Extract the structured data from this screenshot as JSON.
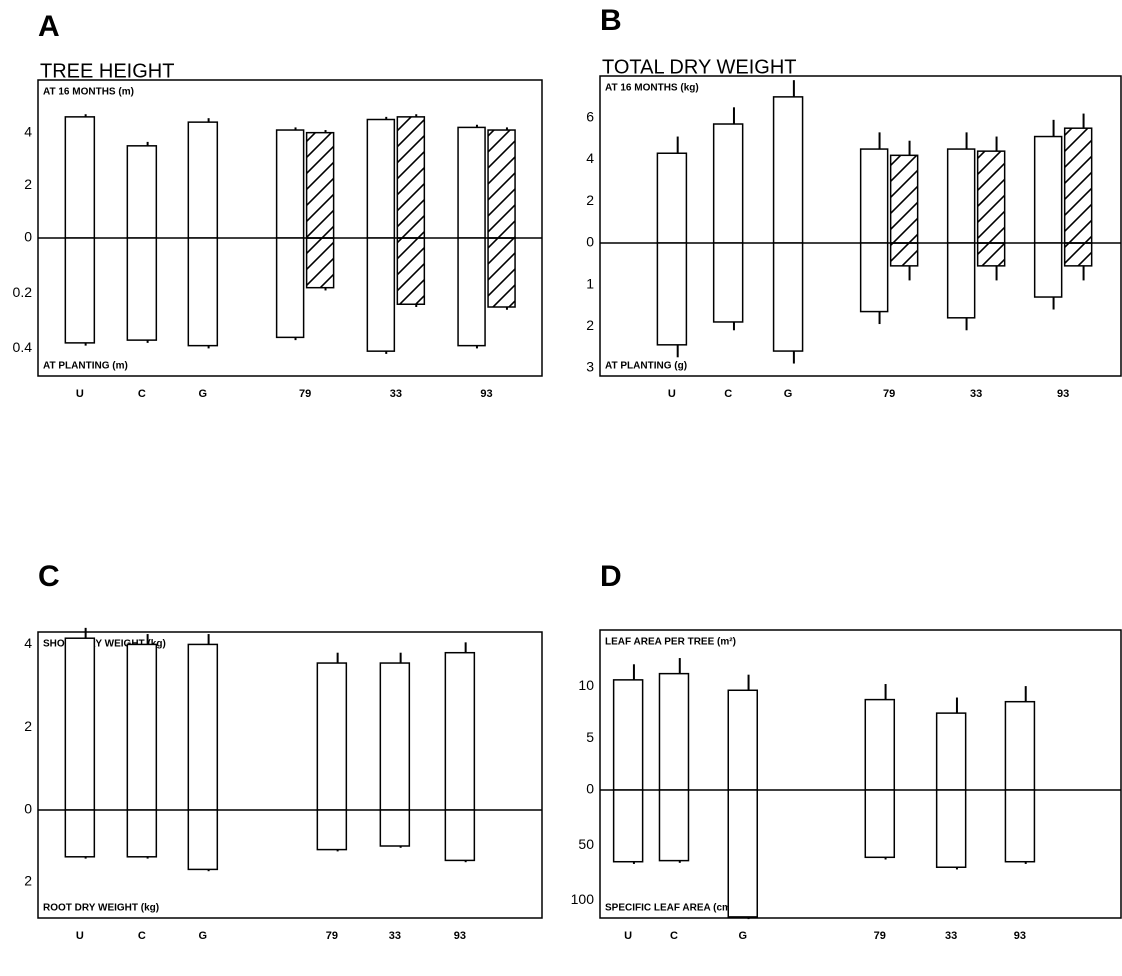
{
  "chart_data": [
    {
      "type": "bar",
      "label": "A",
      "title": "TREE HEIGHT",
      "categories": [
        "U",
        "C",
        "G",
        "79",
        "33",
        "93"
      ],
      "top": {
        "label": "AT 16 MONTHS (m)",
        "ylim": [
          0,
          6
        ],
        "yticks": [
          0,
          2,
          4
        ],
        "series": [
          {
            "values": [
              4.6,
              3.5,
              4.4,
              4.1,
              4.5,
              4.2
            ],
            "errors": [
              0.1,
              0.15,
              0.15,
              0.1,
              0.1,
              0.1
            ]
          },
          {
            "values": [
              null,
              null,
              null,
              4.0,
              4.6,
              4.1
            ],
            "errors": [
              null,
              null,
              null,
              0.1,
              0.1,
              0.1
            ],
            "pattern": "hatch"
          }
        ]
      },
      "bottom": {
        "label": "AT PLANTING (m)",
        "ylim": [
          0,
          0.5
        ],
        "yticks": [
          0.2,
          0.4
        ],
        "series": [
          {
            "values": [
              0.38,
              0.37,
              0.39,
              0.36,
              0.41,
              0.39
            ],
            "errors": [
              0.01,
              0.01,
              0.01,
              0.01,
              0.01,
              0.01
            ]
          },
          {
            "values": [
              null,
              null,
              null,
              0.18,
              0.24,
              0.25
            ],
            "errors": [
              null,
              null,
              null,
              0.01,
              0.01,
              0.01
            ],
            "pattern": "hatch"
          }
        ]
      }
    },
    {
      "type": "bar",
      "label": "B",
      "title": "TOTAL DRY WEIGHT",
      "categories": [
        "U",
        "C",
        "G",
        "79",
        "33",
        "93"
      ],
      "top": {
        "label": "AT 16 MONTHS (kg)",
        "ylim": [
          0,
          8
        ],
        "yticks": [
          0,
          2,
          4,
          6
        ],
        "series": [
          {
            "values": [
              4.3,
              5.7,
              7.0,
              4.5,
              4.5,
              5.1
            ],
            "errors": [
              0.8,
              0.8,
              0.8,
              0.8,
              0.8,
              0.8
            ]
          },
          {
            "values": [
              null,
              null,
              null,
              4.2,
              4.4,
              5.5
            ],
            "errors": [
              null,
              null,
              null,
              0.7,
              0.7,
              0.7
            ],
            "pattern": "hatch"
          }
        ]
      },
      "bottom": {
        "label": "AT PLANTING (g)",
        "ylim": [
          0,
          3.2
        ],
        "yticks": [
          1,
          2,
          3
        ],
        "series": [
          {
            "values": [
              2.45,
              1.9,
              2.6,
              1.65,
              1.8,
              1.3
            ],
            "errors": [
              0.3,
              0.2,
              0.3,
              0.3,
              0.3,
              0.3
            ]
          },
          {
            "values": [
              null,
              null,
              null,
              0.55,
              0.55,
              0.55
            ],
            "errors": [
              null,
              null,
              null,
              0.35,
              0.35,
              0.35
            ],
            "pattern": "hatch"
          }
        ]
      }
    },
    {
      "type": "bar",
      "label": "C",
      "categories": [
        "U",
        "C",
        "G",
        "79",
        "33",
        "93"
      ],
      "top": {
        "label": "SHOOT DRY WEIGHT (kg)",
        "ylim": [
          0,
          4.3
        ],
        "yticks": [
          0,
          2,
          4
        ],
        "series": [
          {
            "values": [
              4.15,
              4.0,
              4.0,
              3.55,
              3.55,
              3.8
            ],
            "errors": [
              0.25,
              0.25,
              0.25,
              0.25,
              0.25,
              0.25
            ]
          }
        ]
      },
      "bottom": {
        "label": "ROOT DRY WEIGHT (kg)",
        "ylim": [
          0,
          3.0
        ],
        "yticks": [
          2
        ],
        "series": [
          {
            "values": [
              1.3,
              1.3,
              1.65,
              1.1,
              1.0,
              1.4
            ],
            "errors": [
              0.05,
              0.05,
              0.05,
              0.05,
              0.05,
              0.05
            ]
          }
        ]
      }
    },
    {
      "type": "bar",
      "label": "D",
      "categories": [
        "U",
        "C",
        "G",
        "79",
        "33",
        "93"
      ],
      "top": {
        "label": "LEAF AREA PER TREE (m²)",
        "ylim": [
          0,
          15.4
        ],
        "yticks": [
          0,
          5,
          10
        ],
        "series": [
          {
            "values": [
              10.6,
              11.2,
              9.6,
              8.7,
              7.4,
              8.5
            ],
            "errors": [
              1.5,
              1.5,
              1.5,
              1.5,
              1.5,
              1.5
            ]
          }
        ]
      },
      "bottom": {
        "label": "SPECIFIC LEAF AREA (cm² g⁻¹)",
        "ylim": [
          0,
          116
        ],
        "yticks": [
          50,
          100
        ],
        "series": [
          {
            "values": [
              65,
              64,
              115,
              61,
              70,
              65
            ],
            "errors": [
              2,
              2,
              2,
              2,
              2,
              2
            ]
          }
        ]
      }
    }
  ]
}
